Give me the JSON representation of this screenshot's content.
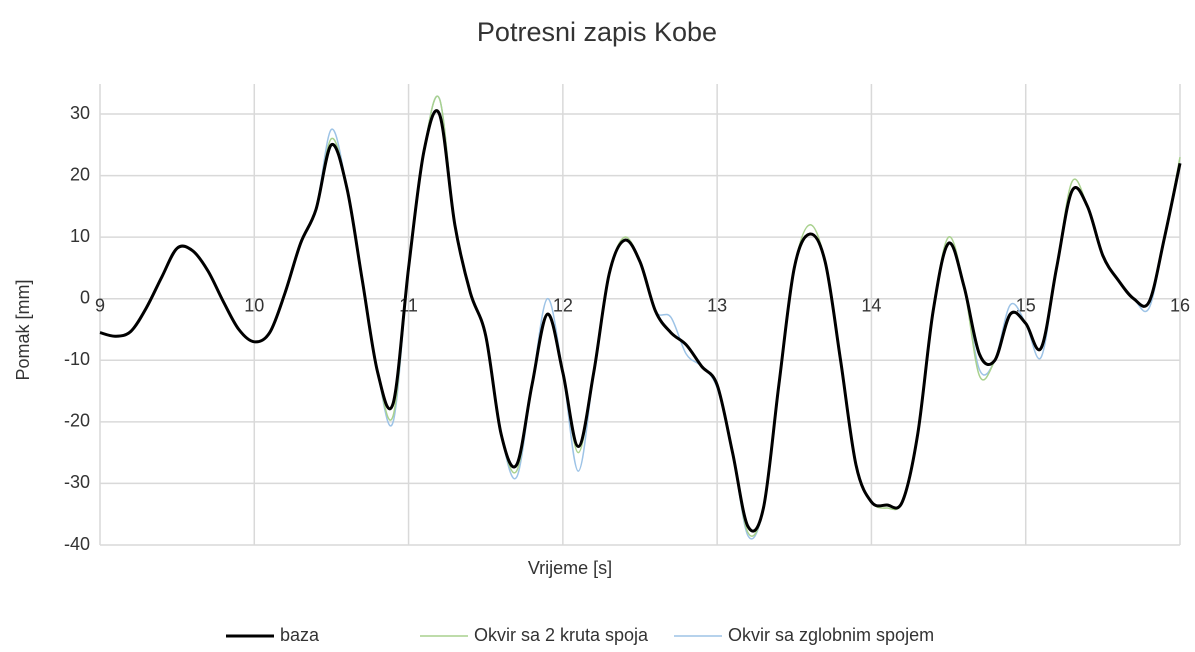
{
  "chart_data": {
    "type": "line",
    "title": "Potresni zapis Kobe",
    "xlabel": "Vrijeme [s]",
    "ylabel": "Pomak [mm]",
    "x": [
      9.0,
      9.1,
      9.2,
      9.3,
      9.4,
      9.5,
      9.6,
      9.7,
      9.8,
      9.9,
      10.0,
      10.1,
      10.2,
      10.3,
      10.4,
      10.5,
      10.6,
      10.7,
      10.8,
      10.9,
      11.0,
      11.1,
      11.2,
      11.3,
      11.4,
      11.5,
      11.6,
      11.7,
      11.8,
      11.9,
      12.0,
      12.1,
      12.2,
      12.3,
      12.4,
      12.5,
      12.6,
      12.7,
      12.8,
      12.9,
      13.0,
      13.1,
      13.2,
      13.3,
      13.4,
      13.5,
      13.6,
      13.7,
      13.8,
      13.9,
      14.0,
      14.1,
      14.2,
      14.3,
      14.4,
      14.5,
      14.6,
      14.7,
      14.8,
      14.9,
      15.0,
      15.1,
      15.2,
      15.3,
      15.4,
      15.5,
      15.6,
      15.7,
      15.8,
      15.9,
      16.0
    ],
    "series": [
      {
        "name": "baza",
        "color": "#000000",
        "width": 3,
        "values": [
          -5.5,
          -6.1,
          -5.3,
          -1.5,
          3.5,
          8.2,
          7.8,
          4.5,
          -0.5,
          -5,
          -7,
          -5.5,
          1,
          9,
          14.5,
          25,
          18,
          3,
          -12,
          -17,
          5,
          24,
          30,
          12,
          1,
          -6,
          -22,
          -27,
          -14,
          -2.5,
          -12,
          -24,
          -12,
          4,
          9.5,
          6,
          -2,
          -5.5,
          -7.5,
          -11,
          -14,
          -25,
          -37,
          -34,
          -14,
          5,
          10.5,
          6,
          -10,
          -27,
          -33,
          -33.5,
          -33,
          -22,
          -2,
          9,
          2,
          -9,
          -10,
          -2.5,
          -4,
          -8,
          5,
          17.5,
          15,
          7,
          3,
          0,
          -0.5,
          10,
          22
        ]
      },
      {
        "name": "Okvir sa 2 kruta spoja",
        "color": "#a9d18e",
        "width": 1.5,
        "values": [
          -5.5,
          -6.1,
          -5.3,
          -1.5,
          3.5,
          8.2,
          7.8,
          4.5,
          -0.5,
          -5,
          -7,
          -5.5,
          1,
          9,
          14.5,
          26,
          18,
          3,
          -12,
          -19,
          5,
          24,
          32.5,
          12,
          1,
          -6,
          -22,
          -28,
          -14,
          -2.5,
          -12,
          -25,
          -12,
          4,
          10,
          6,
          -2,
          -5.5,
          -7.5,
          -11,
          -14,
          -25,
          -38,
          -34,
          -14,
          5,
          12,
          6,
          -10,
          -27,
          -33,
          -34,
          -33,
          -22,
          -2,
          10,
          2,
          -12.5,
          -10,
          -2.5,
          -4,
          -8,
          5,
          19,
          15,
          7,
          3,
          0,
          -0.5,
          10,
          23
        ]
      },
      {
        "name": "Okvir sa zglobnim spojem",
        "color": "#9dc3e6",
        "width": 1.5,
        "values": [
          -5.5,
          -6.1,
          -5.3,
          -1.5,
          3.5,
          8.2,
          7.8,
          4.5,
          -0.5,
          -5,
          -7,
          -5.5,
          1,
          9,
          14.5,
          27.5,
          18,
          3,
          -12,
          -20,
          5,
          24,
          32.5,
          12,
          1,
          -6,
          -22,
          -29,
          -14,
          0,
          -12,
          -28,
          -12,
          4,
          9.5,
          6,
          -2,
          -3,
          -9,
          -11,
          -14.5,
          -25,
          -38.5,
          -34,
          -14,
          5,
          10.5,
          6,
          -10,
          -27,
          -33,
          -33.5,
          -33,
          -22,
          -2,
          9,
          2,
          -11.5,
          -10,
          -1,
          -4,
          -9.5,
          5,
          17.5,
          15,
          7,
          3,
          0,
          -1.5,
          10,
          22
        ]
      }
    ],
    "xlim": [
      9,
      16
    ],
    "xticks": [
      9,
      10,
      11,
      12,
      13,
      14,
      15,
      16
    ],
    "ylim": [
      -40,
      30
    ],
    "yticks": [
      -40,
      -30,
      -20,
      -10,
      0,
      10,
      20,
      30
    ],
    "grid": true,
    "legend": "bottom"
  }
}
